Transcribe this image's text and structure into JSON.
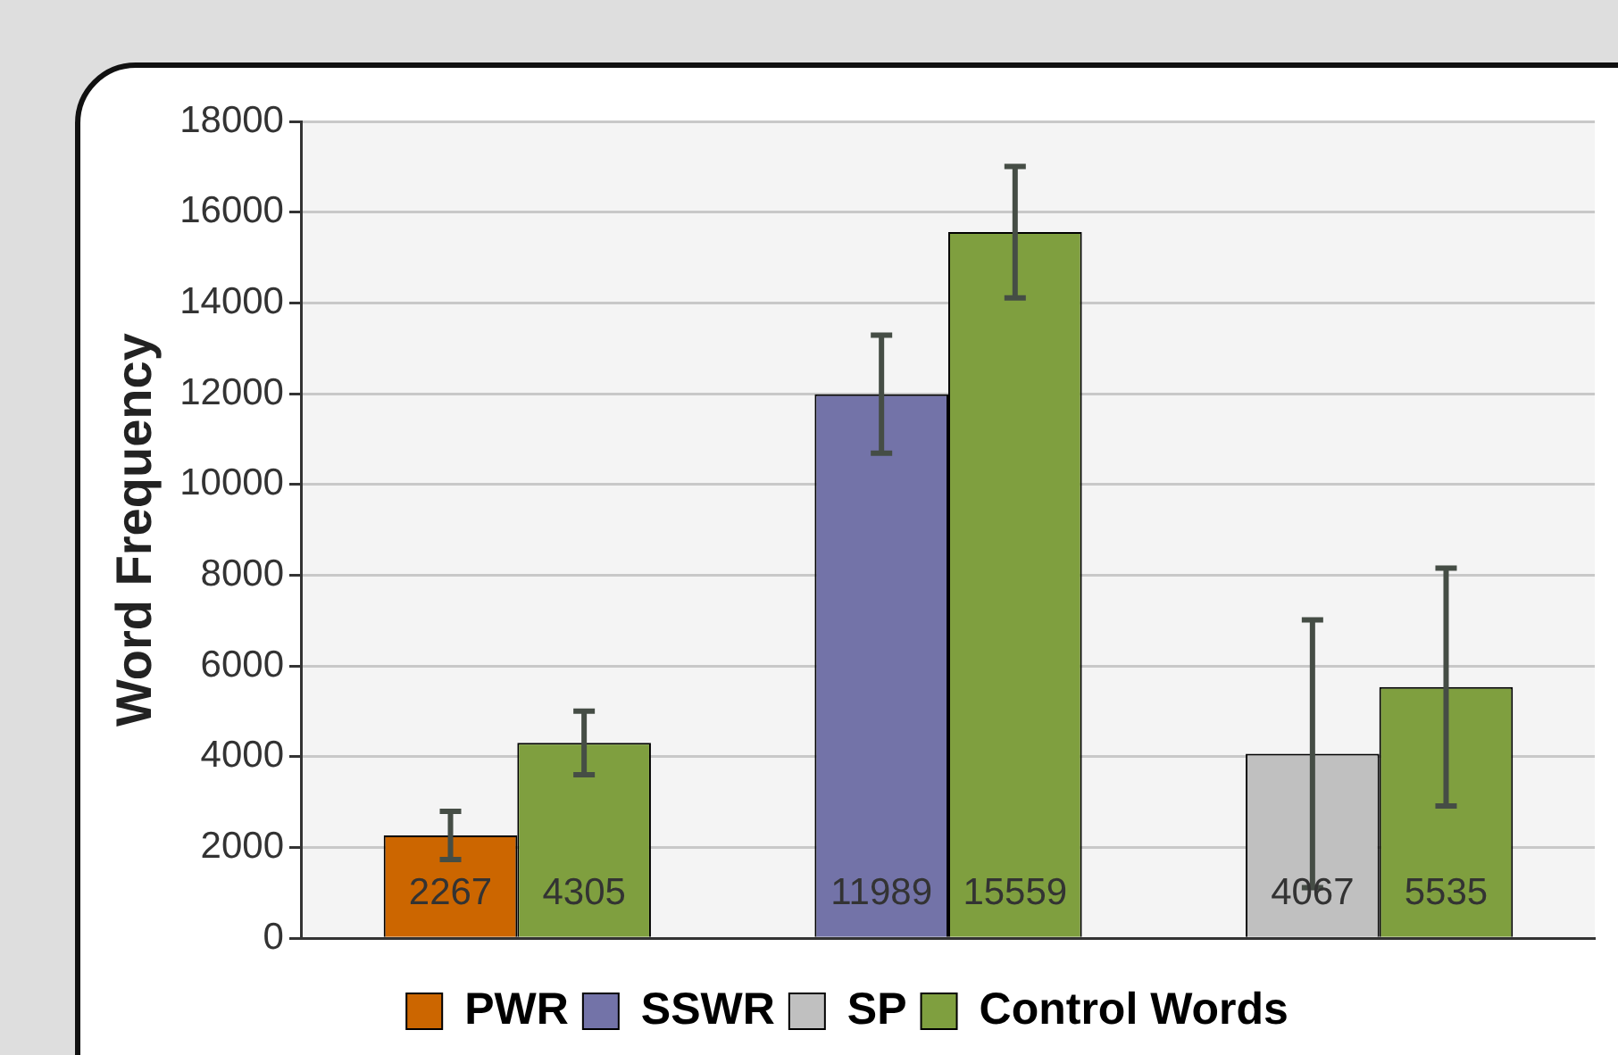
{
  "chart_data": {
    "type": "bar",
    "ylabel": "Word Frequency",
    "categories": [
      null,
      null,
      null
    ],
    "series": [
      {
        "name": "PWR",
        "color": "#cc6600",
        "values": [
          2267,
          null,
          null
        ],
        "errors": [
          530,
          null,
          null
        ]
      },
      {
        "name": "SSWR",
        "color": "#7373a8",
        "values": [
          null,
          11989,
          null
        ],
        "errors": [
          null,
          1300,
          null
        ]
      },
      {
        "name": "SP",
        "color": "#c0c0c0",
        "values": [
          null,
          null,
          4067
        ],
        "errors": [
          null,
          null,
          2950
        ]
      },
      {
        "name": "Control Words",
        "color": "#7f9f3f",
        "values": [
          4305,
          15559,
          5535
        ],
        "errors": [
          700,
          1450,
          2620
        ]
      }
    ],
    "ylim": [
      0,
      18000
    ],
    "yticks": [
      0,
      2000,
      4000,
      6000,
      8000,
      10000,
      12000,
      14000,
      16000,
      18000
    ],
    "grid": "y",
    "legend": "bottom",
    "data_labels": true
  }
}
